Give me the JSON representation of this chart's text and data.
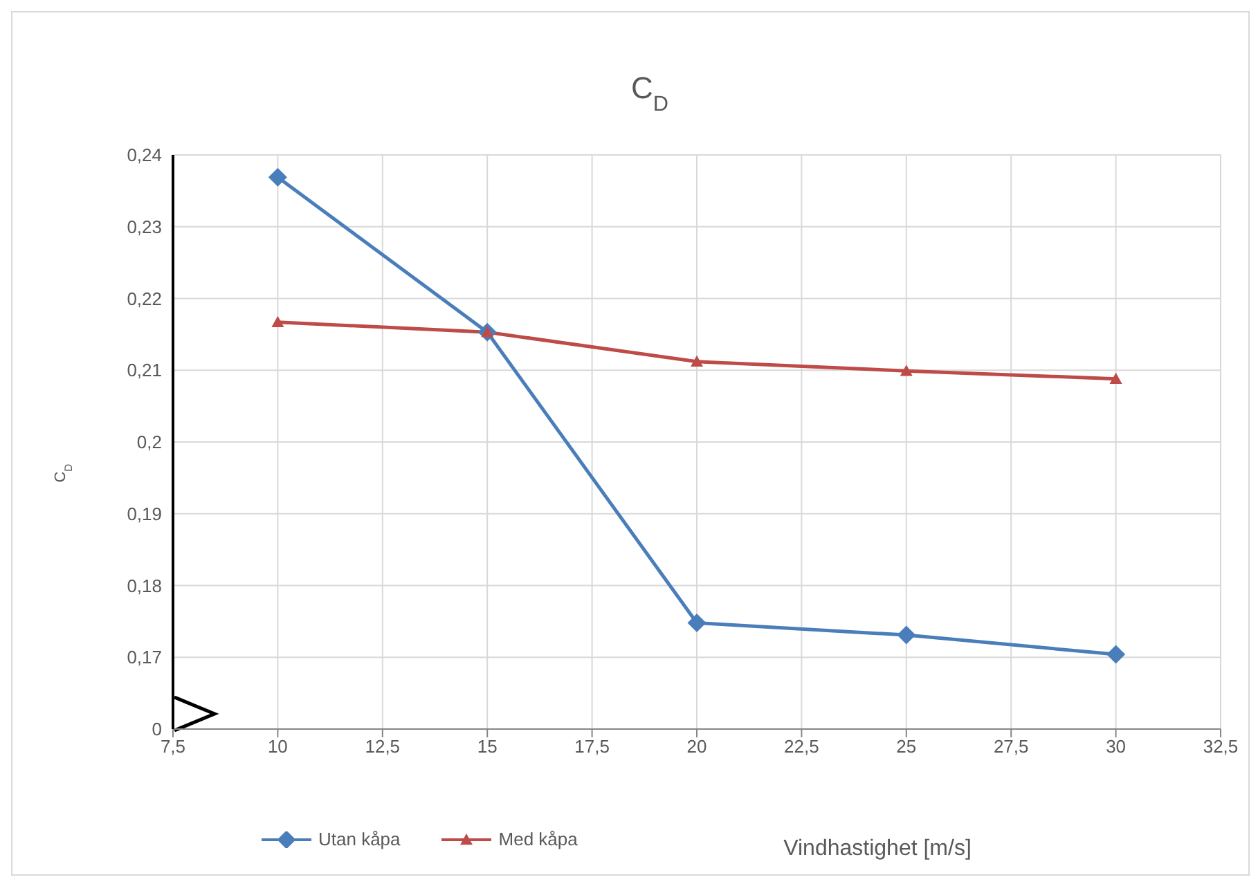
{
  "chart_data": {
    "type": "line",
    "title": "C$_{D}$",
    "xlabel": "Vindhastighet [m/s]",
    "ylabel": "C$_{D}$",
    "x": [
      10,
      15,
      20,
      25,
      30
    ],
    "series": [
      {
        "name": "Utan kåpa",
        "color": "#4a7ebb",
        "marker": "diamond",
        "values": [
          0.2369,
          0.2153,
          0.1748,
          0.1731,
          0.1704
        ]
      },
      {
        "name": "Med kåpa",
        "color": "#be4b48",
        "marker": "triangle",
        "values": [
          0.2167,
          0.2153,
          0.2112,
          0.2099,
          0.2088
        ]
      }
    ],
    "xlim": [
      7.5,
      32.5
    ],
    "xticks": [
      {
        "value": 7.5,
        "label": "7,5"
      },
      {
        "value": 10,
        "label": "10"
      },
      {
        "value": 12.5,
        "label": "12,5"
      },
      {
        "value": 15,
        "label": "15"
      },
      {
        "value": 17.5,
        "label": "17,5"
      },
      {
        "value": 20,
        "label": "20"
      },
      {
        "value": 22.5,
        "label": "22,5"
      },
      {
        "value": 25,
        "label": "25"
      },
      {
        "value": 27.5,
        "label": "27,5"
      },
      {
        "value": 30,
        "label": "30"
      },
      {
        "value": 32.5,
        "label": "32,5"
      }
    ],
    "ylim": [
      0.16,
      0.24
    ],
    "yticks": [
      {
        "value": 0.16,
        "label": "0"
      },
      {
        "value": 0.17,
        "label": "0,17"
      },
      {
        "value": 0.18,
        "label": "0,18"
      },
      {
        "value": 0.19,
        "label": "0,19"
      },
      {
        "value": 0.2,
        "label": "0,2"
      },
      {
        "value": 0.21,
        "label": "0,21"
      },
      {
        "value": 0.22,
        "label": "0,22"
      },
      {
        "value": 0.23,
        "label": "0,23"
      },
      {
        "value": 0.24,
        "label": "0,24"
      }
    ],
    "grid": true,
    "legend": "bottom left",
    "line_style": "solid"
  }
}
